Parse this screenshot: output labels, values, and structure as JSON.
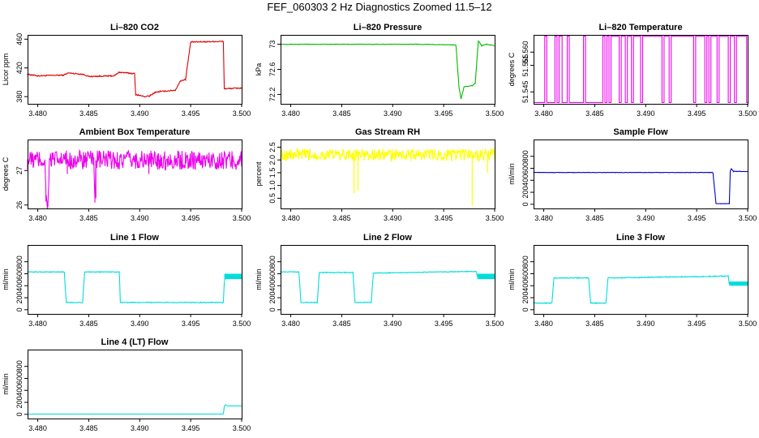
{
  "figure_title": "FEF_060303  2 Hz Diagnostics Zoomed 11.5–12",
  "chart_data": [
    {
      "type": "line",
      "title": "Li–820 CO2",
      "ylabel": "Licor ppm",
      "color": "#dd0000",
      "xlim": [
        3.479,
        3.5
      ],
      "ylim": [
        370,
        466
      ],
      "xticks": [
        "3.480",
        "3.485",
        "3.490",
        "3.495",
        "3.500"
      ],
      "yticks": [
        380,
        420,
        460
      ],
      "noise": 0.8,
      "x": [
        3.479,
        3.48,
        3.4825,
        3.483,
        3.4845,
        3.485,
        3.4875,
        3.488,
        3.4895,
        3.4896,
        3.4905,
        3.491,
        3.4915,
        3.492,
        3.4935,
        3.494,
        3.4945,
        3.495,
        3.4982,
        3.4983,
        3.5
      ],
      "y": [
        411,
        409,
        410,
        413,
        411,
        408,
        409,
        414,
        412,
        383,
        380,
        381,
        386,
        387,
        389,
        402,
        404,
        456,
        457,
        391,
        392
      ]
    },
    {
      "type": "line",
      "title": "Li–820 Pressure",
      "ylabel": "kPa",
      "color": "#00bb00",
      "xlim": [
        3.479,
        3.5
      ],
      "ylim": [
        72.05,
        73.15
      ],
      "xticks": [
        "3.480",
        "3.485",
        "3.490",
        "3.495",
        "3.500"
      ],
      "yticks": [
        72.2,
        72.6,
        73.0
      ],
      "noise": 0.004,
      "x": [
        3.479,
        3.4925,
        3.4962,
        3.4965,
        3.4967,
        3.497,
        3.4978,
        3.4981,
        3.4984,
        3.4987,
        3.4992,
        3.5
      ],
      "y": [
        73.0,
        73.0,
        72.99,
        72.32,
        72.13,
        72.32,
        72.34,
        72.38,
        73.06,
        72.98,
        73.0,
        72.98
      ]
    },
    {
      "type": "line",
      "title": "Li–820 Temperature",
      "ylabel": "degrees C",
      "color": "#ee00ee",
      "xlim": [
        3.479,
        3.5
      ],
      "ylim": [
        51.5405,
        51.5665
      ],
      "xticks": [
        "3.480",
        "3.485",
        "3.490",
        "3.495",
        "3.500"
      ],
      "yticks": [
        51.545,
        51.555,
        51.56
      ],
      "noise": 0,
      "x": [
        3.479,
        3.4801,
        3.4801,
        3.4803,
        3.4803,
        3.4811,
        3.4811,
        3.4813,
        3.4813,
        3.4815,
        3.4815,
        3.4818,
        3.4818,
        3.4823,
        3.4823,
        3.4825,
        3.4825,
        3.4839,
        3.4839,
        3.4841,
        3.4841,
        3.4858,
        3.4858,
        3.486,
        3.486,
        3.4862,
        3.4862,
        3.4864,
        3.4864,
        3.4866,
        3.4866,
        3.4874,
        3.4874,
        3.4876,
        3.4876,
        3.488,
        3.488,
        3.4882,
        3.4882,
        3.4886,
        3.4886,
        3.4888,
        3.4888,
        3.4895,
        3.4895,
        3.4897,
        3.4897,
        3.4916,
        3.4916,
        3.4918,
        3.4918,
        3.4923,
        3.4923,
        3.4925,
        3.4925,
        3.4947,
        3.4947,
        3.4949,
        3.4949,
        3.4958,
        3.4958,
        3.496,
        3.496,
        3.4962,
        3.4962,
        3.4964,
        3.4964,
        3.497,
        3.497,
        3.4972,
        3.4972,
        3.4981,
        3.4981,
        3.4983,
        3.4983,
        3.4987,
        3.4987,
        3.4989,
        3.4989,
        3.4999,
        3.4999,
        3.5
      ],
      "y": [
        51.541,
        51.541,
        51.566,
        51.566,
        51.541,
        51.541,
        51.566,
        51.566,
        51.541,
        51.541,
        51.566,
        51.566,
        51.541,
        51.541,
        51.566,
        51.566,
        51.541,
        51.541,
        51.566,
        51.566,
        51.541,
        51.541,
        51.566,
        51.566,
        51.541,
        51.541,
        51.566,
        51.566,
        51.541,
        51.541,
        51.566,
        51.566,
        51.541,
        51.541,
        51.566,
        51.566,
        51.541,
        51.541,
        51.566,
        51.566,
        51.541,
        51.541,
        51.566,
        51.566,
        51.541,
        51.541,
        51.566,
        51.566,
        51.541,
        51.541,
        51.566,
        51.566,
        51.541,
        51.541,
        51.566,
        51.566,
        51.541,
        51.541,
        51.566,
        51.566,
        51.541,
        51.541,
        51.566,
        51.566,
        51.541,
        51.541,
        51.566,
        51.566,
        51.541,
        51.541,
        51.566,
        51.566,
        51.541,
        51.541,
        51.566,
        51.566,
        51.541,
        51.541,
        51.566,
        51.566,
        51.541,
        51.541
      ]
    },
    {
      "type": "line",
      "title": "Ambient Box Temperature",
      "ylabel": "degrees C",
      "color": "#ee00ee",
      "xlim": [
        3.479,
        3.5
      ],
      "ylim": [
        25.9,
        27.9
      ],
      "xticks": [
        "3.480",
        "3.485",
        "3.490",
        "3.495",
        "3.500"
      ],
      "yticks": [
        26.0,
        27.0
      ],
      "noise": 0.28,
      "x": [
        3.479,
        3.4807,
        3.4808,
        3.481,
        3.4811,
        3.4812,
        3.4855,
        3.4856,
        3.4857,
        3.5
      ],
      "y": [
        27.3,
        27.3,
        26.3,
        26.0,
        27.0,
        27.3,
        27.3,
        26.2,
        27.3,
        27.3
      ],
      "spikes": [
        {
          "x": 3.4808,
          "y": 26.1
        },
        {
          "x": 3.481,
          "y": 25.95
        },
        {
          "x": 3.4829,
          "y": 26.9
        },
        {
          "x": 3.4857,
          "y": 26.2
        },
        {
          "x": 3.4909,
          "y": 26.9
        }
      ]
    },
    {
      "type": "line",
      "title": "Gas Stream RH",
      "ylabel": "percent",
      "color": "#ffff00",
      "xlim": [
        3.479,
        3.5
      ],
      "ylim": [
        0.1,
        2.8
      ],
      "xticks": [
        "3.480",
        "3.485",
        "3.490",
        "3.495",
        "3.500"
      ],
      "yticks": [
        0.5,
        1.0,
        1.5,
        2.0,
        2.5
      ],
      "noise": 0.24,
      "x": [
        3.479,
        3.5
      ],
      "y": [
        2.2,
        2.2
      ],
      "spikes": [
        {
          "x": 3.4862,
          "y": 0.7
        },
        {
          "x": 3.4866,
          "y": 0.8
        },
        {
          "x": 3.4978,
          "y": 0.2
        },
        {
          "x": 3.4993,
          "y": 1.5
        }
      ]
    },
    {
      "type": "line",
      "title": "Sample Flow",
      "ylabel": "ml/min",
      "color": "#0000cc",
      "xlim": [
        3.479,
        3.5
      ],
      "ylim": [
        -70,
        1080
      ],
      "xticks": [
        "3.480",
        "3.485",
        "3.490",
        "3.495",
        "3.500"
      ],
      "yticks": [
        0,
        200,
        400,
        600,
        800
      ],
      "noise": 3,
      "x": [
        3.479,
        3.4965,
        3.4966,
        3.4969,
        3.4982,
        3.4983,
        3.4984,
        3.4986,
        3.5
      ],
      "y": [
        530,
        530,
        520,
        10,
        10,
        560,
        590,
        550,
        545
      ]
    },
    {
      "type": "line",
      "title": "Line 1 Flow",
      "ylabel": "ml/min",
      "color": "#00dddd",
      "xlim": [
        3.479,
        3.5
      ],
      "ylim": [
        -70,
        1080
      ],
      "xticks": [
        "3.480",
        "3.485",
        "3.490",
        "3.495",
        "3.500"
      ],
      "yticks": [
        0,
        200,
        400,
        600,
        800
      ],
      "noise": 6,
      "x": [
        3.479,
        3.4826,
        3.4828,
        3.4844,
        3.4846,
        3.488,
        3.4881,
        3.4982,
        3.4983,
        3.4984,
        3.5
      ],
      "y": [
        630,
        630,
        120,
        120,
        630,
        630,
        120,
        120,
        450,
        560,
        560
      ],
      "band": {
        "x0": 3.4983,
        "x1": 3.5,
        "y0": 510,
        "y1": 600
      }
    },
    {
      "type": "line",
      "title": "Line 2 Flow",
      "ylabel": "ml/min",
      "color": "#00dddd",
      "xlim": [
        3.479,
        3.5
      ],
      "ylim": [
        -70,
        1080
      ],
      "xticks": [
        "3.480",
        "3.485",
        "3.490",
        "3.495",
        "3.500"
      ],
      "yticks": [
        0,
        200,
        400,
        600,
        800
      ],
      "noise": 6,
      "x": [
        3.479,
        3.4808,
        3.481,
        3.4826,
        3.4828,
        3.4861,
        3.4863,
        3.4879,
        3.4881,
        3.4982,
        3.4983,
        3.5
      ],
      "y": [
        630,
        630,
        120,
        120,
        620,
        620,
        120,
        120,
        610,
        640,
        560,
        560
      ],
      "band": {
        "x0": 3.4983,
        "x1": 3.5,
        "y0": 510,
        "y1": 600
      }
    },
    {
      "type": "line",
      "title": "Line 3 Flow",
      "ylabel": "ml/min",
      "color": "#00dddd",
      "xlim": [
        3.479,
        3.5
      ],
      "ylim": [
        -70,
        1080
      ],
      "xticks": [
        "3.480",
        "3.485",
        "3.490",
        "3.495",
        "3.500"
      ],
      "yticks": [
        0,
        200,
        400,
        600,
        800
      ],
      "noise": 7,
      "x": [
        3.479,
        3.4808,
        3.481,
        3.4844,
        3.4846,
        3.4861,
        3.4863,
        3.4981,
        3.4982,
        3.5
      ],
      "y": [
        110,
        110,
        530,
        530,
        110,
        110,
        530,
        560,
        430,
        430
      ],
      "band": {
        "x0": 3.4982,
        "x1": 3.5,
        "y0": 400,
        "y1": 470
      }
    },
    {
      "type": "line",
      "title": "Line 4 (LT) Flow",
      "ylabel": "ml/min",
      "color": "#00dddd",
      "xlim": [
        3.479,
        3.5
      ],
      "ylim": [
        -70,
        1080
      ],
      "xticks": [
        "3.480",
        "3.485",
        "3.490",
        "3.495",
        "3.500"
      ],
      "yticks": [
        0,
        200,
        400,
        600,
        800
      ],
      "noise": 1,
      "x": [
        3.479,
        3.4982,
        3.4983,
        3.4984,
        3.4986,
        3.5
      ],
      "y": [
        5,
        5,
        130,
        160,
        140,
        140
      ]
    }
  ]
}
